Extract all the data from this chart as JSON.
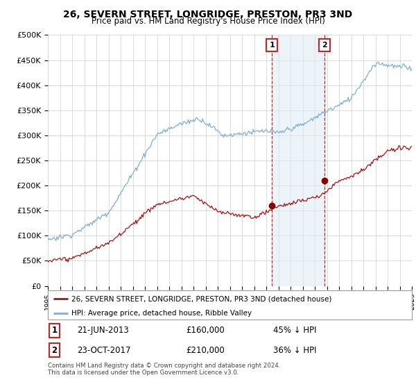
{
  "title": "26, SEVERN STREET, LONGRIDGE, PRESTON, PR3 3ND",
  "subtitle": "Price paid vs. HM Land Registry's House Price Index (HPI)",
  "ylabel_ticks": [
    "£0",
    "£50K",
    "£100K",
    "£150K",
    "£200K",
    "£250K",
    "£300K",
    "£350K",
    "£400K",
    "£450K",
    "£500K"
  ],
  "ytick_values": [
    0,
    50000,
    100000,
    150000,
    200000,
    250000,
    300000,
    350000,
    400000,
    450000,
    500000
  ],
  "xlim_start": 1995.0,
  "xlim_end": 2025.0,
  "ylim": [
    0,
    500000
  ],
  "hpi_color": "#7bafd4",
  "price_color": "#aa1111",
  "transaction1_date": 2013.47,
  "transaction1_price": 160000,
  "transaction2_date": 2017.81,
  "transaction2_price": 210000,
  "legend_text1": "26, SEVERN STREET, LONGRIDGE, PRESTON, PR3 3ND (detached house)",
  "legend_text2": "HPI: Average price, detached house, Ribble Valley",
  "table_row1": [
    "1",
    "21-JUN-2013",
    "£160,000",
    "45% ↓ HPI"
  ],
  "table_row2": [
    "2",
    "23-OCT-2017",
    "£210,000",
    "36% ↓ HPI"
  ],
  "footer": "Contains HM Land Registry data © Crown copyright and database right 2024.\nThis data is licensed under the Open Government Licence v3.0.",
  "background_color": "#ffffff",
  "grid_color": "#cccccc",
  "vline_color": "#cc2222",
  "shade_color": "#deeaf5"
}
